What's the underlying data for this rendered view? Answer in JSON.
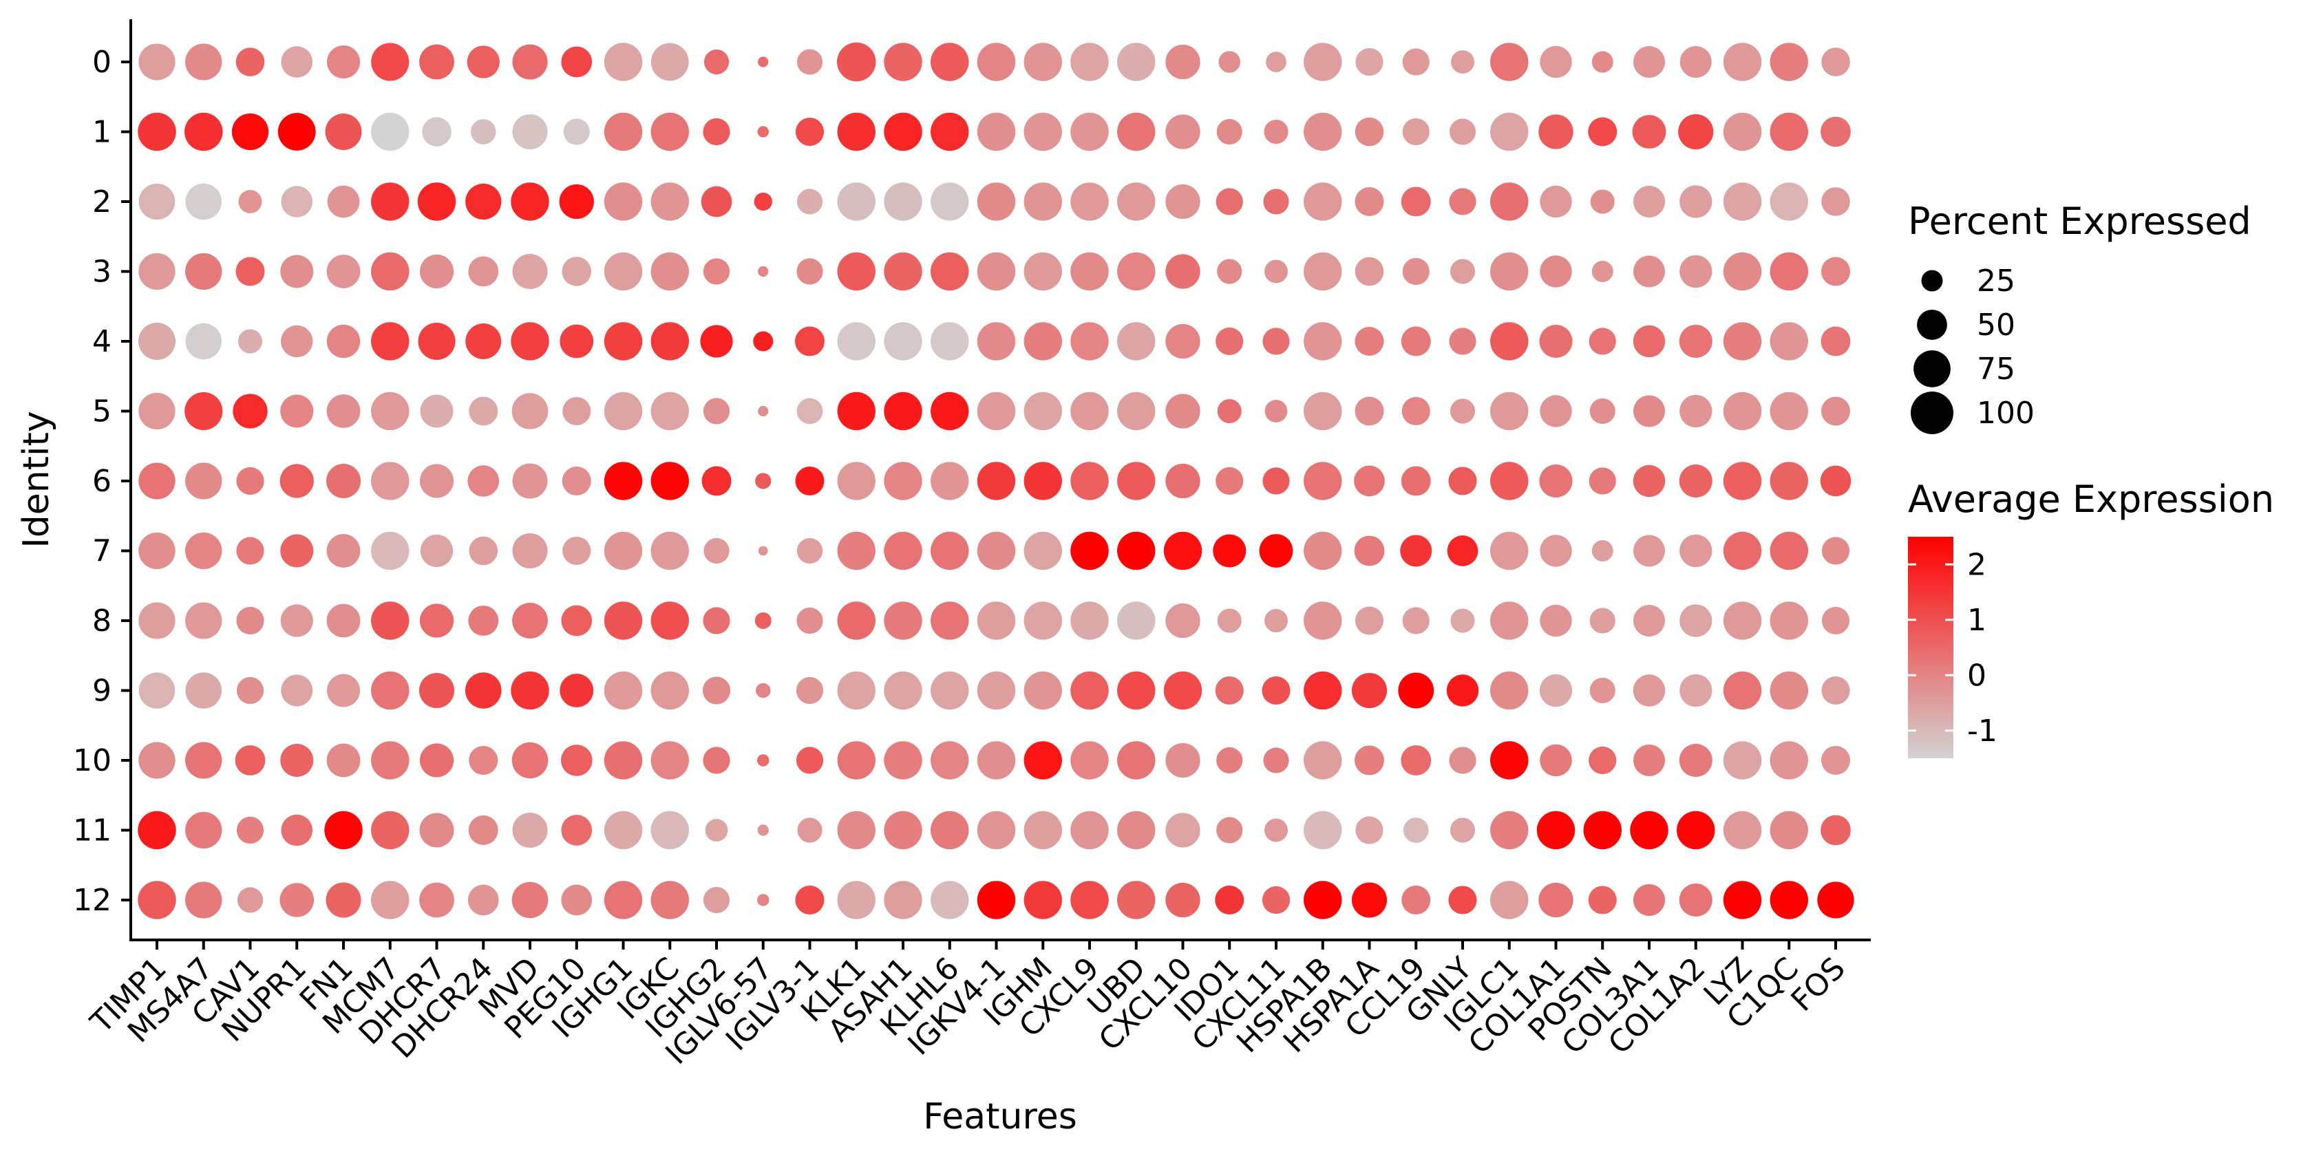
{
  "chart_data": {
    "type": "dotplot",
    "xlabel": "Features",
    "ylabel": "Identity",
    "features": [
      "TIMP1",
      "MS4A7",
      "CAV1",
      "NUPR1",
      "FN1",
      "MCM7",
      "DHCR7",
      "DHCR24",
      "MVD",
      "PEG10",
      "IGHG1",
      "IGKC",
      "IGHG2",
      "IGLV6-57",
      "IGLV3-1",
      "KLK1",
      "ASAH1",
      "KLHL6",
      "IGKV4-1",
      "IGHM",
      "CXCL9",
      "UBD",
      "CXCL10",
      "IDO1",
      "CXCL11",
      "HSPA1B",
      "HSPA1A",
      "CCL19",
      "GNLY",
      "IGLC1",
      "COL1A1",
      "POSTN",
      "COL3A1",
      "COL1A2",
      "LYZ",
      "C1QC",
      "FOS"
    ],
    "identities": [
      "0",
      "1",
      "2",
      "3",
      "4",
      "5",
      "6",
      "7",
      "8",
      "9",
      "10",
      "11",
      "12"
    ],
    "size_legend": {
      "title": "Percent Expressed",
      "values": [
        25,
        50,
        75,
        100
      ]
    },
    "color_legend": {
      "title": "Average Expression",
      "ticks": [
        2,
        1,
        0,
        -1
      ],
      "range": [
        -1.5,
        2.5
      ],
      "low_color": "#D3D3D3",
      "high_color": "#FF0000"
    },
    "percent_expressed": [
      [
        74,
        74,
        45,
        54,
        60,
        79,
        67,
        58,
        68,
        52,
        80,
        78,
        34,
        6,
        36,
        83,
        80,
        80,
        80,
        80,
        80,
        80,
        66,
        26,
        23,
        80,
        42,
        40,
        30,
        80,
        56,
        25,
        55,
        55,
        80,
        80,
        45
      ],
      [
        80,
        80,
        74,
        78,
        73,
        80,
        47,
        35,
        68,
        38,
        80,
        80,
        40,
        7,
        44,
        80,
        80,
        80,
        80,
        80,
        80,
        80,
        66,
        36,
        32,
        80,
        45,
        40,
        38,
        80,
        66,
        46,
        62,
        68,
        80,
        80,
        50
      ],
      [
        72,
        72,
        30,
        54,
        57,
        80,
        80,
        71,
        80,
        66,
        80,
        80,
        52,
        18,
        36,
        80,
        80,
        80,
        80,
        80,
        80,
        80,
        66,
        40,
        36,
        80,
        46,
        48,
        40,
        80,
        56,
        32,
        55,
        58,
        80,
        80,
        45
      ],
      [
        74,
        74,
        46,
        60,
        62,
        80,
        63,
        50,
        68,
        47,
        80,
        80,
        38,
        6,
        38,
        80,
        80,
        80,
        80,
        80,
        80,
        80,
        66,
        34,
        30,
        80,
        45,
        40,
        34,
        80,
        56,
        25,
        55,
        58,
        80,
        80,
        46
      ],
      [
        76,
        72,
        32,
        56,
        61,
        80,
        76,
        70,
        80,
        62,
        80,
        80,
        58,
        22,
        48,
        80,
        80,
        80,
        80,
        80,
        80,
        80,
        66,
        42,
        40,
        80,
        46,
        48,
        40,
        80,
        60,
        40,
        56,
        60,
        80,
        80,
        48
      ],
      [
        74,
        79,
        66,
        60,
        62,
        80,
        60,
        46,
        72,
        44,
        80,
        80,
        38,
        6,
        37,
        80,
        80,
        80,
        80,
        80,
        80,
        80,
        66,
        32,
        28,
        80,
        46,
        44,
        34,
        80,
        56,
        36,
        55,
        58,
        80,
        80,
        46
      ],
      [
        74,
        74,
        42,
        63,
        65,
        80,
        63,
        54,
        68,
        46,
        80,
        80,
        48,
        14,
        46,
        80,
        80,
        80,
        80,
        80,
        80,
        80,
        66,
        42,
        40,
        80,
        52,
        48,
        44,
        80,
        60,
        40,
        56,
        60,
        80,
        80,
        52
      ],
      [
        74,
        74,
        42,
        60,
        62,
        80,
        58,
        45,
        68,
        44,
        80,
        80,
        36,
        5,
        36,
        80,
        80,
        80,
        80,
        80,
        80,
        80,
        80,
        60,
        62,
        80,
        50,
        55,
        52,
        80,
        56,
        25,
        55,
        58,
        80,
        80,
        42
      ],
      [
        74,
        74,
        42,
        58,
        62,
        80,
        63,
        50,
        70,
        52,
        80,
        80,
        40,
        15,
        38,
        80,
        80,
        80,
        80,
        80,
        80,
        80,
        66,
        32,
        30,
        80,
        44,
        40,
        32,
        80,
        56,
        36,
        55,
        58,
        80,
        80,
        42
      ],
      [
        72,
        72,
        40,
        55,
        60,
        80,
        68,
        72,
        80,
        62,
        80,
        80,
        42,
        12,
        40,
        80,
        80,
        80,
        80,
        80,
        80,
        80,
        80,
        44,
        44,
        80,
        68,
        70,
        56,
        80,
        58,
        36,
        56,
        58,
        80,
        80,
        44
      ],
      [
        74,
        74,
        50,
        60,
        62,
        80,
        63,
        46,
        72,
        54,
        80,
        80,
        40,
        8,
        40,
        80,
        80,
        80,
        80,
        80,
        80,
        80,
        66,
        38,
        36,
        80,
        48,
        50,
        40,
        80,
        56,
        42,
        55,
        60,
        80,
        80,
        46
      ],
      [
        80,
        74,
        40,
        54,
        80,
        80,
        65,
        48,
        68,
        52,
        80,
        80,
        28,
        7,
        34,
        80,
        80,
        80,
        80,
        80,
        80,
        80,
        66,
        38,
        30,
        80,
        42,
        35,
        34,
        80,
        80,
        80,
        80,
        80,
        80,
        80,
        50
      ],
      [
        80,
        74,
        36,
        64,
        68,
        80,
        67,
        52,
        72,
        52,
        80,
        80,
        38,
        8,
        46,
        80,
        80,
        80,
        80,
        80,
        80,
        80,
        66,
        46,
        42,
        80,
        68,
        46,
        44,
        80,
        66,
        44,
        55,
        60,
        80,
        80,
        74
      ]
    ],
    "average_expression": [
      [
        -0.5,
        -0.1,
        0.6,
        -0.6,
        0.0,
        1.1,
        0.7,
        0.7,
        0.5,
        1.2,
        -0.6,
        -0.7,
        0.5,
        0.5,
        -0.3,
        0.9,
        0.6,
        0.8,
        0.0,
        -0.3,
        -0.6,
        -0.8,
        -0.1,
        -0.2,
        -0.5,
        -0.5,
        -0.6,
        -0.4,
        -0.5,
        0.3,
        -0.4,
        -0.1,
        -0.3,
        -0.3,
        -0.4,
        0.1,
        -0.4
      ],
      [
        1.5,
        1.6,
        2.3,
        2.5,
        0.9,
        -1.5,
        -1.3,
        -1.1,
        -1.2,
        -1.3,
        0.2,
        0.3,
        0.8,
        0.5,
        1.1,
        1.6,
        1.8,
        1.7,
        -0.2,
        -0.3,
        -0.3,
        0.3,
        -0.2,
        -0.1,
        -0.1,
        -0.2,
        -0.1,
        -0.5,
        -0.5,
        -0.6,
        0.8,
        1.1,
        0.8,
        1.2,
        -0.3,
        0.5,
        0.4
      ],
      [
        -0.9,
        -1.4,
        -0.3,
        -0.9,
        -0.3,
        1.5,
        1.8,
        1.7,
        1.8,
        2.1,
        -0.2,
        -0.3,
        0.9,
        1.3,
        -0.8,
        -1.1,
        -1.1,
        -1.3,
        -0.1,
        -0.3,
        -0.4,
        -0.4,
        -0.3,
        0.4,
        0.4,
        -0.4,
        -0.1,
        0.5,
        0.2,
        0.4,
        -0.4,
        -0.2,
        -0.5,
        -0.5,
        -0.6,
        -0.9,
        -0.4
      ],
      [
        -0.4,
        0.2,
        0.7,
        -0.2,
        -0.3,
        0.5,
        -0.2,
        -0.3,
        -0.6,
        -0.6,
        -0.5,
        -0.2,
        0.0,
        0.0,
        -0.1,
        0.8,
        0.6,
        0.7,
        -0.2,
        -0.4,
        -0.1,
        0.0,
        0.4,
        -0.1,
        -0.3,
        -0.4,
        -0.4,
        -0.2,
        -0.5,
        -0.2,
        -0.1,
        -0.3,
        -0.2,
        -0.3,
        -0.1,
        0.3,
        0.0
      ],
      [
        -0.7,
        -1.4,
        -0.8,
        -0.3,
        0.0,
        1.3,
        1.3,
        1.3,
        1.3,
        1.3,
        1.3,
        1.4,
        1.9,
        1.9,
        1.2,
        -1.3,
        -1.3,
        -1.3,
        -0.1,
        0.1,
        0.0,
        -0.6,
        0.0,
        0.4,
        0.4,
        -0.3,
        0.1,
        0.2,
        0.1,
        0.8,
        0.4,
        0.3,
        0.5,
        0.3,
        0.1,
        -0.3,
        0.3
      ],
      [
        -0.4,
        1.3,
        1.7,
        0.0,
        -0.2,
        -0.4,
        -0.8,
        -0.7,
        -0.5,
        -0.5,
        -0.6,
        -0.6,
        -0.2,
        -0.2,
        -0.9,
        2.0,
        2.0,
        2.0,
        -0.4,
        -0.6,
        -0.4,
        -0.5,
        -0.1,
        0.4,
        -0.1,
        -0.5,
        -0.2,
        0.0,
        -0.4,
        -0.4,
        -0.3,
        -0.2,
        -0.1,
        -0.3,
        -0.3,
        -0.3,
        -0.2
      ],
      [
        0.3,
        -0.1,
        0.2,
        0.7,
        0.4,
        -0.4,
        -0.3,
        0.0,
        -0.3,
        -0.2,
        2.4,
        2.4,
        1.6,
        0.8,
        2.0,
        -0.4,
        0.0,
        -0.3,
        1.4,
        1.5,
        0.7,
        0.8,
        0.4,
        0.2,
        0.8,
        0.3,
        0.3,
        0.4,
        0.8,
        0.8,
        0.3,
        0.2,
        0.6,
        0.6,
        0.7,
        0.6,
        0.9
      ],
      [
        -0.2,
        0.0,
        0.2,
        0.6,
        -0.2,
        -1.0,
        -0.6,
        -0.5,
        -0.5,
        -0.5,
        -0.3,
        -0.4,
        -0.4,
        -0.3,
        -0.5,
        0.1,
        0.3,
        0.3,
        -0.1,
        -0.6,
        2.5,
        2.5,
        2.2,
        2.3,
        2.4,
        -0.1,
        0.2,
        1.5,
        1.8,
        -0.4,
        -0.4,
        -0.5,
        -0.4,
        -0.4,
        0.5,
        0.5,
        -0.1
      ],
      [
        -0.5,
        -0.4,
        -0.1,
        -0.4,
        -0.2,
        0.9,
        0.5,
        0.2,
        0.3,
        0.7,
        0.9,
        1.0,
        0.4,
        0.7,
        -0.2,
        0.5,
        0.2,
        0.3,
        -0.5,
        -0.6,
        -0.7,
        -1.1,
        -0.4,
        -0.5,
        -0.5,
        -0.3,
        -0.5,
        -0.5,
        -0.7,
        -0.3,
        -0.3,
        -0.5,
        -0.4,
        -0.6,
        -0.4,
        -0.3,
        -0.3
      ],
      [
        -0.9,
        -0.7,
        -0.2,
        -0.6,
        -0.4,
        0.3,
        0.9,
        1.5,
        1.5,
        1.5,
        -0.4,
        -0.4,
        -0.1,
        0.0,
        -0.3,
        -0.6,
        -0.6,
        -0.6,
        -0.5,
        -0.3,
        0.7,
        1.1,
        1.1,
        0.5,
        1.0,
        1.6,
        1.4,
        2.5,
        2.0,
        -0.1,
        -0.7,
        -0.3,
        -0.4,
        -0.6,
        0.3,
        -0.1,
        -0.5
      ],
      [
        -0.2,
        0.3,
        0.7,
        0.6,
        -0.1,
        0.2,
        0.4,
        0.0,
        0.3,
        0.7,
        0.4,
        0.0,
        0.3,
        0.5,
        0.8,
        0.3,
        0.1,
        0.0,
        -0.2,
        2.1,
        0.0,
        0.3,
        -0.2,
        0.1,
        0.1,
        -0.5,
        0.1,
        0.5,
        -0.2,
        2.4,
        0.2,
        0.5,
        0.1,
        0.2,
        -0.6,
        -0.3,
        -0.3
      ],
      [
        2.0,
        0.2,
        0.1,
        0.4,
        2.4,
        0.6,
        -0.1,
        -0.1,
        -0.7,
        0.5,
        -0.7,
        -1.0,
        -0.6,
        -0.3,
        -0.4,
        -0.1,
        0.1,
        0.2,
        -0.3,
        -0.5,
        -0.3,
        -0.1,
        -0.6,
        -0.1,
        -0.4,
        -1.0,
        -0.6,
        -1.0,
        -0.6,
        0.1,
        2.4,
        2.5,
        2.5,
        2.4,
        -0.4,
        -0.1,
        0.6
      ],
      [
        0.8,
        0.2,
        -0.4,
        0.1,
        0.6,
        -0.5,
        0.0,
        -0.3,
        0.2,
        -0.1,
        0.3,
        0.2,
        -0.5,
        0.0,
        1.1,
        -0.7,
        -0.5,
        -1.0,
        2.5,
        1.4,
        1.1,
        0.6,
        0.6,
        1.5,
        0.6,
        2.5,
        2.3,
        0.2,
        1.1,
        -0.5,
        0.3,
        0.6,
        0.3,
        0.3,
        2.5,
        2.5,
        2.5
      ]
    ]
  }
}
